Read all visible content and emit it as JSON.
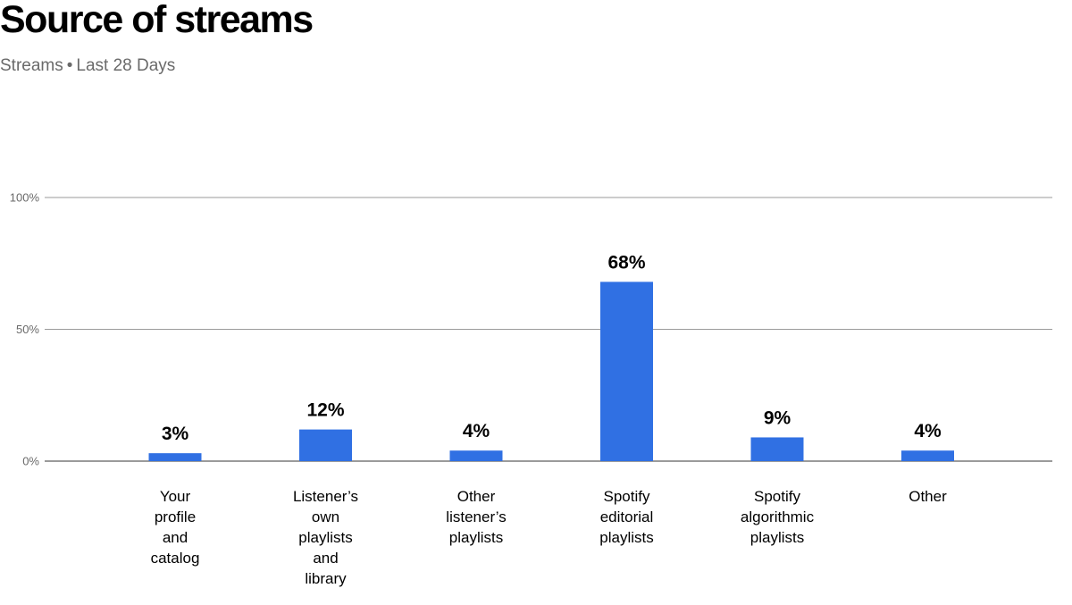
{
  "header": {
    "title": "Source of streams",
    "subtitle_metric": "Streams",
    "subtitle_separator": "•",
    "subtitle_period": "Last 28 Days"
  },
  "colors": {
    "bar": "#3070e3",
    "grid": "#9a9a9a",
    "baseline": "#7a7a7a"
  },
  "chart_data": {
    "type": "bar",
    "title": "Source of streams",
    "subtitle": "Streams • Last 28 Days",
    "xlabel": "",
    "ylabel": "",
    "ylim": [
      0,
      100
    ],
    "grid": true,
    "legend": "none",
    "yticks": [
      {
        "value": 100,
        "label": "100%"
      },
      {
        "value": 50,
        "label": "50%"
      },
      {
        "value": 0,
        "label": "0%"
      }
    ],
    "categories": [
      [
        "Your",
        "profile",
        "and",
        "catalog"
      ],
      [
        "Listener’s",
        "own",
        "playlists",
        "and",
        "library"
      ],
      [
        "Other",
        "listener’s",
        "playlists"
      ],
      [
        "Spotify",
        "editorial",
        "playlists"
      ],
      [
        "Spotify",
        "algorithmic",
        "playlists"
      ],
      [
        "Other"
      ]
    ],
    "values": [
      3,
      12,
      4,
      68,
      9,
      4
    ],
    "value_labels": [
      "3%",
      "12%",
      "4%",
      "68%",
      "9%",
      "4%"
    ]
  }
}
